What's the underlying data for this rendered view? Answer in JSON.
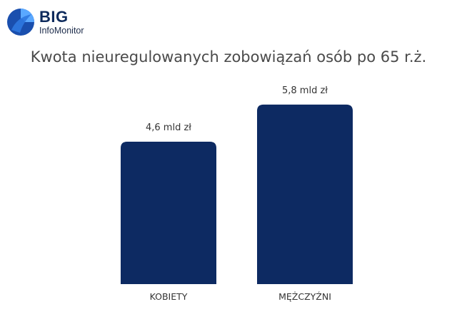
{
  "brand": {
    "name": "BIG",
    "subname": "InfoMonitor"
  },
  "colors": {
    "bar": "#0d2a62",
    "logo_primary": "#1f5fbf",
    "logo_light": "#4f9bff"
  },
  "icons": {
    "logo": "big-infomonitor-logo-icon"
  },
  "chart_data": {
    "type": "bar",
    "title": "Kwota nieuregulowanych zobowiązań osób po 65 r.ż.",
    "categories": [
      "KOBIETY",
      "MĘŻCZYŹNI"
    ],
    "values": [
      4.6,
      5.8
    ],
    "data_labels": [
      "4,6 mld zł",
      "5,8 mld zł"
    ],
    "ylim": [
      0,
      6.9
    ],
    "grid": false,
    "legend": "none"
  }
}
